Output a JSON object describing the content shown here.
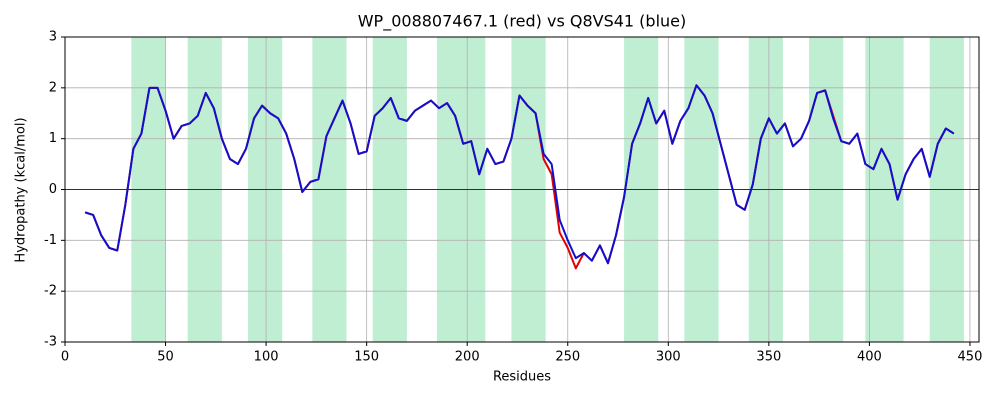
{
  "chart_data": {
    "type": "line",
    "title": "WP_008807467.1 (red) vs Q8VS41 (blue)",
    "x_label": "Residues",
    "y_label": "Hydropathy (kcal/mol)",
    "xlim": [
      0,
      454.5
    ],
    "ylim": [
      -3,
      3
    ],
    "xticks": [
      0,
      50,
      100,
      150,
      200,
      250,
      300,
      350,
      400,
      450
    ],
    "yticks": [
      -3,
      -2,
      -1,
      0,
      1,
      2,
      3
    ],
    "grid": true,
    "reference_line": 0,
    "span_color": "#bfeed3",
    "spans": [
      [
        33,
        50
      ],
      [
        61,
        78
      ],
      [
        91,
        108
      ],
      [
        123,
        140
      ],
      [
        153,
        170
      ],
      [
        185,
        209
      ],
      [
        222,
        239
      ],
      [
        278,
        295
      ],
      [
        308,
        325
      ],
      [
        340,
        357
      ],
      [
        370,
        387
      ],
      [
        398,
        417
      ],
      [
        430,
        447
      ]
    ],
    "x": [
      10,
      14,
      18,
      22,
      26,
      30,
      34,
      38,
      42,
      46,
      50,
      54,
      58,
      62,
      66,
      70,
      74,
      78,
      82,
      86,
      90,
      94,
      98,
      102,
      106,
      110,
      114,
      118,
      122,
      126,
      130,
      134,
      138,
      142,
      146,
      150,
      154,
      158,
      162,
      166,
      170,
      174,
      178,
      182,
      186,
      190,
      194,
      198,
      202,
      206,
      210,
      214,
      218,
      222,
      226,
      230,
      234,
      238,
      242,
      246,
      250,
      254,
      258,
      262,
      266,
      270,
      274,
      278,
      282,
      286,
      290,
      294,
      298,
      302,
      306,
      310,
      314,
      318,
      322,
      326,
      330,
      334,
      338,
      342,
      346,
      350,
      354,
      358,
      362,
      366,
      370,
      374,
      378,
      382,
      386,
      390,
      394,
      398,
      402,
      406,
      410,
      414,
      418,
      422,
      426,
      430,
      434,
      438,
      442
    ],
    "series": [
      {
        "color": "#e00000",
        "values": [
          -0.45,
          -0.5,
          -0.9,
          -1.15,
          -1.2,
          -0.3,
          0.8,
          1.1,
          2.0,
          2.0,
          1.55,
          1.0,
          1.25,
          1.3,
          1.45,
          1.9,
          1.6,
          1.0,
          0.6,
          0.5,
          0.8,
          1.4,
          1.65,
          1.5,
          1.4,
          1.1,
          0.6,
          -0.05,
          0.15,
          0.2,
          1.05,
          1.4,
          1.75,
          1.3,
          0.7,
          0.75,
          1.45,
          1.6,
          1.8,
          1.4,
          1.35,
          1.55,
          1.65,
          1.75,
          1.6,
          1.7,
          1.45,
          0.9,
          0.95,
          0.3,
          0.8,
          0.5,
          0.55,
          1.0,
          1.85,
          1.65,
          1.5,
          0.6,
          0.3,
          -0.85,
          -1.15,
          -1.55,
          -1.25,
          -1.4,
          -1.1,
          -1.45,
          -0.9,
          -0.15,
          0.9,
          1.3,
          1.8,
          1.3,
          1.55,
          0.9,
          1.35,
          1.6,
          2.05,
          1.85,
          1.5,
          0.9,
          0.3,
          -0.3,
          -0.4,
          0.1,
          1.0,
          1.4,
          1.1,
          1.3,
          0.85,
          1.0,
          1.35,
          1.9,
          1.95,
          1.45,
          0.95,
          0.9,
          1.1,
          0.5,
          0.4,
          0.8,
          0.5,
          -0.2,
          0.3,
          0.6,
          0.8,
          0.25,
          0.9,
          1.2,
          1.1
        ]
      },
      {
        "color": "#1010d0",
        "values": [
          -0.45,
          -0.5,
          -0.9,
          -1.15,
          -1.2,
          -0.3,
          0.8,
          1.1,
          2.0,
          2.0,
          1.55,
          1.0,
          1.25,
          1.3,
          1.45,
          1.9,
          1.6,
          1.0,
          0.6,
          0.5,
          0.8,
          1.4,
          1.65,
          1.5,
          1.4,
          1.1,
          0.6,
          -0.05,
          0.15,
          0.2,
          1.05,
          1.4,
          1.75,
          1.3,
          0.7,
          0.75,
          1.45,
          1.6,
          1.8,
          1.4,
          1.35,
          1.55,
          1.65,
          1.75,
          1.6,
          1.7,
          1.45,
          0.9,
          0.95,
          0.3,
          0.8,
          0.5,
          0.55,
          1.0,
          1.85,
          1.65,
          1.5,
          0.7,
          0.5,
          -0.6,
          -1.0,
          -1.35,
          -1.25,
          -1.4,
          -1.1,
          -1.45,
          -0.9,
          -0.15,
          0.9,
          1.3,
          1.8,
          1.3,
          1.55,
          0.9,
          1.35,
          1.6,
          2.05,
          1.85,
          1.5,
          0.9,
          0.3,
          -0.3,
          -0.4,
          0.1,
          1.0,
          1.4,
          1.1,
          1.3,
          0.85,
          1.0,
          1.35,
          1.9,
          1.95,
          1.4,
          0.95,
          0.9,
          1.1,
          0.5,
          0.4,
          0.8,
          0.5,
          -0.2,
          0.3,
          0.6,
          0.8,
          0.25,
          0.9,
          1.2,
          1.1
        ]
      }
    ]
  }
}
